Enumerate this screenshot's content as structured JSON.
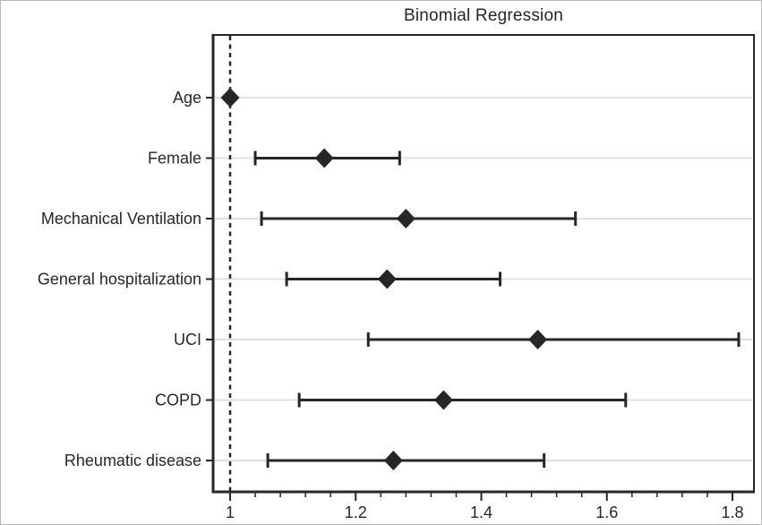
{
  "colors": {
    "ink": "#262626",
    "grid": "#e0e0e0",
    "background": "#ffffff",
    "frame": "#b9b9b9"
  },
  "chart_data": {
    "type": "scatter",
    "subtype": "forest-plot",
    "title": "Binomial Regression",
    "categories": [
      "Age",
      "Female",
      "Mechanical Ventilation",
      "General hospitalization",
      "UCI",
      "COPD",
      "Rheumatic disease"
    ],
    "estimates": [
      1.0,
      1.15,
      1.28,
      1.25,
      1.49,
      1.34,
      1.26
    ],
    "ci_low": [
      1.0,
      1.04,
      1.05,
      1.09,
      1.22,
      1.11,
      1.06
    ],
    "ci_high": [
      1.0,
      1.27,
      1.55,
      1.43,
      1.81,
      1.63,
      1.5
    ],
    "reference_line": 1.0,
    "reference_line_style": "dashed",
    "xlim": [
      0.973,
      1.834
    ],
    "x_major_ticks": [
      1,
      1.2,
      1.4,
      1.6,
      1.8
    ],
    "x_major_tick_labels": [
      "1",
      "1.2",
      "1.4",
      "1.6",
      "1.8"
    ],
    "x_minor_tick_step": 0.04,
    "xlabel": "",
    "ylabel": "",
    "grid": "horizontal-per-category",
    "legend": "none",
    "marker": "filled-diamond",
    "error_bar_caps": true
  }
}
